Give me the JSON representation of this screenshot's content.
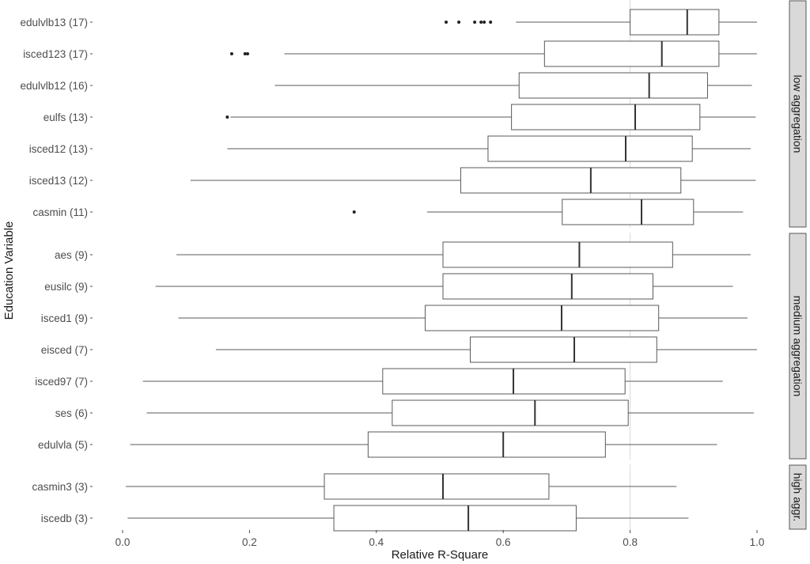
{
  "chart_data": {
    "type": "boxplot",
    "xlabel": "Relative R-Square",
    "ylabel": "Education Variable",
    "xlim": [
      0,
      1
    ],
    "x_ticks": [
      "0.0",
      "0.2",
      "0.4",
      "0.6",
      "0.8",
      "1.0"
    ],
    "x_tick_values": [
      0,
      0.2,
      0.4,
      0.6,
      0.8,
      1.0
    ],
    "reference_line": 0.8,
    "grid": false,
    "facets": [
      {
        "label": "low aggregation",
        "items": [
          {
            "name": "edulvlb13 (17)",
            "whisker_low": 0.62,
            "q1": 0.8,
            "median": 0.89,
            "q3": 0.94,
            "whisker_high": 1.0,
            "outliers": [
              0.51,
              0.53,
              0.555,
              0.565,
              0.57,
              0.58
            ]
          },
          {
            "name": "isced123 (17)",
            "whisker_low": 0.255,
            "q1": 0.665,
            "median": 0.85,
            "q3": 0.94,
            "whisker_high": 1.0,
            "outliers": [
              0.172,
              0.193,
              0.197
            ]
          },
          {
            "name": "edulvlb12 (16)",
            "whisker_low": 0.24,
            "q1": 0.625,
            "median": 0.83,
            "q3": 0.922,
            "whisker_high": 0.992,
            "outliers": []
          },
          {
            "name": "eulfs (13)",
            "whisker_low": 0.17,
            "q1": 0.613,
            "median": 0.808,
            "q3": 0.91,
            "whisker_high": 0.998,
            "outliers": [
              0.165
            ]
          },
          {
            "name": "isced12 (13)",
            "whisker_low": 0.165,
            "q1": 0.576,
            "median": 0.793,
            "q3": 0.898,
            "whisker_high": 0.99,
            "outliers": []
          },
          {
            "name": "isced13 (12)",
            "whisker_low": 0.107,
            "q1": 0.533,
            "median": 0.738,
            "q3": 0.88,
            "whisker_high": 0.998,
            "outliers": []
          },
          {
            "name": "casmin (11)",
            "whisker_low": 0.48,
            "q1": 0.693,
            "median": 0.818,
            "q3": 0.9,
            "whisker_high": 0.978,
            "outliers": [
              0.365
            ]
          }
        ]
      },
      {
        "label": "medium aggregation",
        "items": [
          {
            "name": "aes (9)",
            "whisker_low": 0.085,
            "q1": 0.505,
            "median": 0.72,
            "q3": 0.867,
            "whisker_high": 0.99,
            "outliers": []
          },
          {
            "name": "eusilc (9)",
            "whisker_low": 0.052,
            "q1": 0.505,
            "median": 0.708,
            "q3": 0.836,
            "whisker_high": 0.962,
            "outliers": []
          },
          {
            "name": "isced1 (9)",
            "whisker_low": 0.088,
            "q1": 0.477,
            "median": 0.692,
            "q3": 0.845,
            "whisker_high": 0.985,
            "outliers": []
          },
          {
            "name": "eisced (7)",
            "whisker_low": 0.147,
            "q1": 0.548,
            "median": 0.712,
            "q3": 0.842,
            "whisker_high": 1.0,
            "outliers": []
          },
          {
            "name": "isced97 (7)",
            "whisker_low": 0.032,
            "q1": 0.41,
            "median": 0.616,
            "q3": 0.792,
            "whisker_high": 0.946,
            "outliers": []
          },
          {
            "name": "ses (6)",
            "whisker_low": 0.038,
            "q1": 0.425,
            "median": 0.65,
            "q3": 0.797,
            "whisker_high": 0.995,
            "outliers": []
          },
          {
            "name": "edulvla (5)",
            "whisker_low": 0.012,
            "q1": 0.387,
            "median": 0.6,
            "q3": 0.761,
            "whisker_high": 0.937,
            "outliers": []
          }
        ]
      },
      {
        "label": "high aggr.",
        "items": [
          {
            "name": "casmin3 (3)",
            "whisker_low": 0.005,
            "q1": 0.318,
            "median": 0.505,
            "q3": 0.672,
            "whisker_high": 0.873,
            "outliers": []
          },
          {
            "name": "iscedb (3)",
            "whisker_low": 0.008,
            "q1": 0.333,
            "median": 0.545,
            "q3": 0.715,
            "whisker_high": 0.892,
            "outliers": []
          }
        ]
      }
    ],
    "colors": {
      "box_fill": "#ffffff",
      "box_stroke": "#595959",
      "median": "#333333",
      "reference": "#d9d9d9",
      "facet_fill": "#d9d9d9",
      "facet_stroke": "#333333",
      "text": "#4d4d4d"
    }
  }
}
